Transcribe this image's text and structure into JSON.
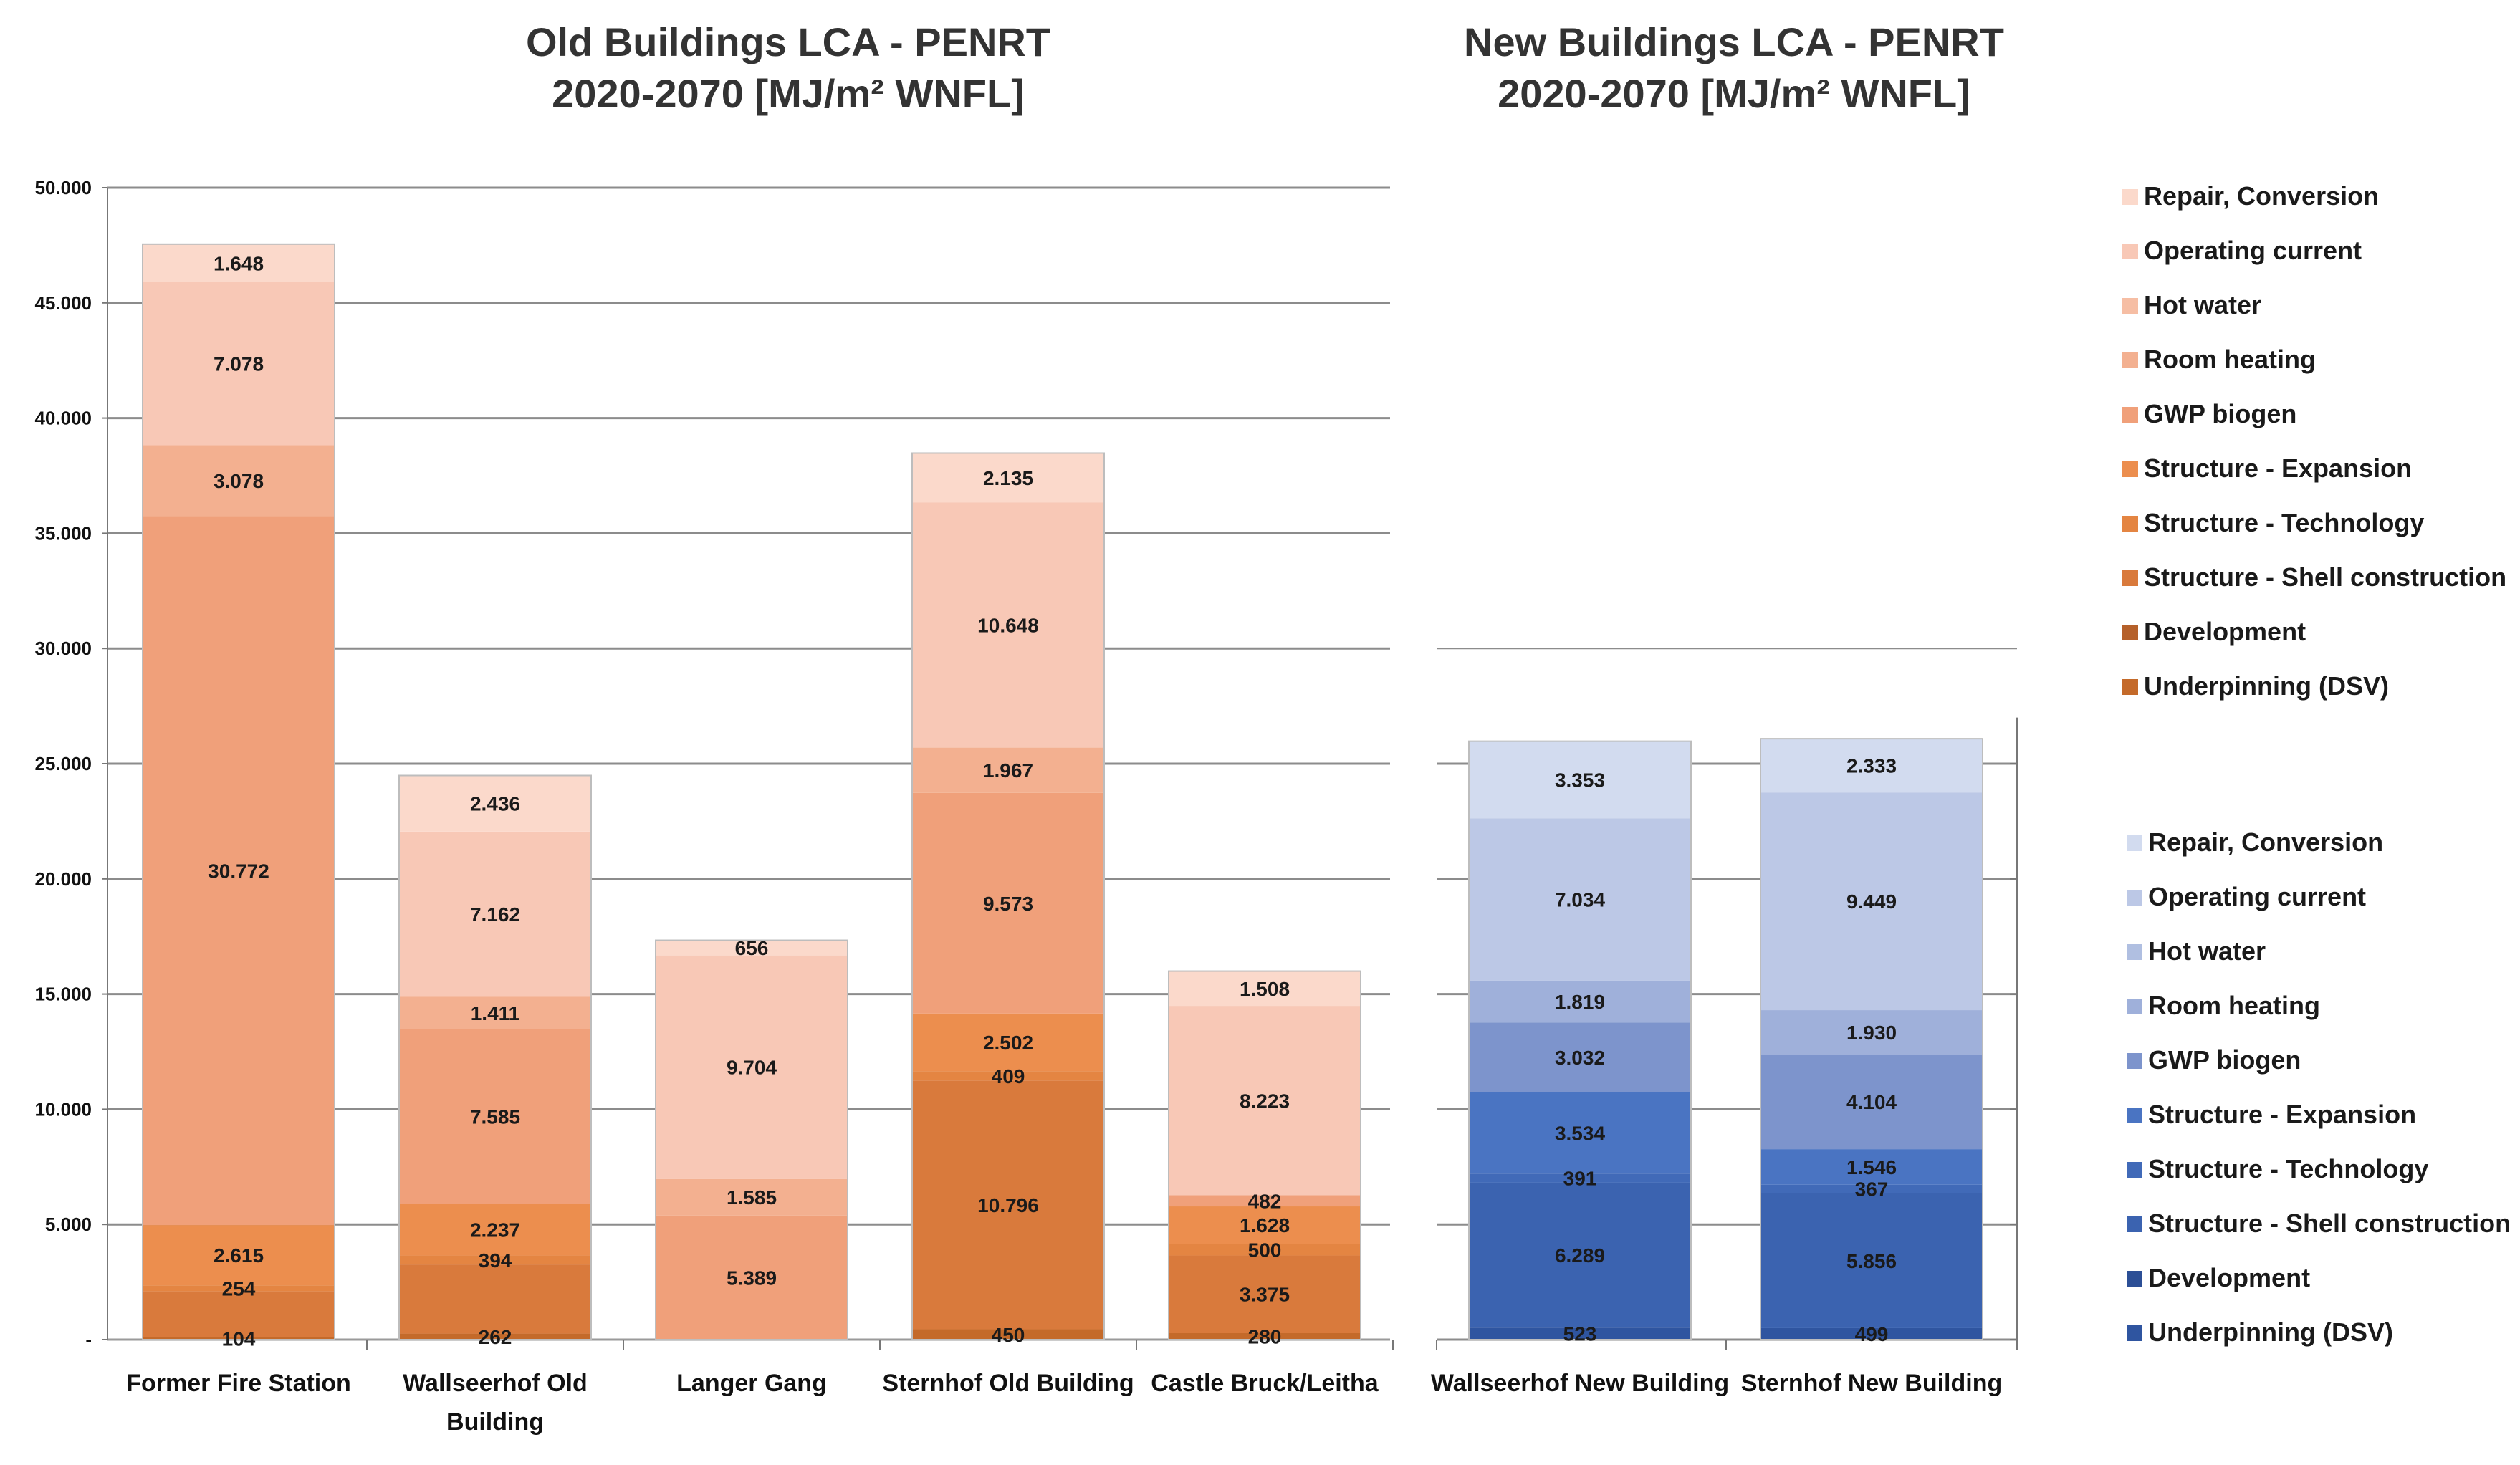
{
  "chart_data": [
    {
      "type": "bar",
      "stacked": true,
      "title": [
        "Old Buildings LCA - PENRT",
        "2020-2070 [MJ/m² WNFL]"
      ],
      "categories": [
        [
          "Former Fire Station"
        ],
        [
          "Wallseerhof Old",
          "Building"
        ],
        [
          "Langer Gang"
        ],
        [
          "Sternhof Old Building"
        ],
        [
          "Castle Bruck/Leitha"
        ]
      ],
      "ylim": [
        0,
        50000
      ],
      "yticks": [
        0,
        5000,
        10000,
        15000,
        20000,
        25000,
        30000,
        35000,
        40000,
        45000,
        50000
      ],
      "ytick_labels": [
        "-",
        "5.000",
        "10.000",
        "15.000",
        "20.000",
        "25.000",
        "30.000",
        "35.000",
        "40.000",
        "45.000",
        "50.000"
      ],
      "grid": true,
      "series": [
        {
          "name": "Underpinning (DSV)",
          "color": "#c46a2a",
          "values": [
            104,
            262,
            null,
            450,
            280
          ],
          "labels": [
            "104",
            "262",
            "",
            "450",
            "280"
          ]
        },
        {
          "name": "Development",
          "color": "#b5602a",
          "values": [
            null,
            null,
            null,
            null,
            null
          ],
          "labels": [
            "",
            "",
            "",
            "",
            ""
          ]
        },
        {
          "name": "Structure - Shell construction",
          "color": "#d97a3c",
          "values": [
            2000,
            3000,
            null,
            10796,
            3375
          ],
          "labels": [
            "",
            "",
            "",
            "10.796",
            "3.375"
          ]
        },
        {
          "name": "Structure - Technology",
          "color": "#e48542",
          "values": [
            254,
            394,
            null,
            409,
            500
          ],
          "labels": [
            "254",
            "394",
            "",
            "409",
            "500"
          ]
        },
        {
          "name": "Structure - Expansion",
          "color": "#ec8e4e",
          "values": [
            2615,
            2237,
            null,
            2502,
            1628
          ],
          "labels": [
            "2.615",
            "2.237",
            "",
            "2.502",
            "1.628"
          ]
        },
        {
          "name": "GWP biogen",
          "color": "#f0a07a",
          "values": [
            30772,
            7585,
            5389,
            9573,
            482
          ],
          "labels": [
            "30.772",
            "7.585",
            "5.389",
            "9.573",
            "482"
          ]
        },
        {
          "name": "Room heating",
          "color": "#f3b090",
          "values": [
            3078,
            1411,
            1585,
            1967,
            null
          ],
          "labels": [
            "3.078",
            "1.411",
            "1.585",
            "1.967",
            ""
          ]
        },
        {
          "name": "Hot water",
          "color": "#f6bea4",
          "values": [
            null,
            null,
            null,
            null,
            null
          ],
          "labels": [
            "",
            "",
            "",
            "",
            ""
          ]
        },
        {
          "name": "Operating current",
          "color": "#f8c8b6",
          "values": [
            7078,
            7162,
            9704,
            10648,
            8223
          ],
          "labels": [
            "7.078",
            "7.162",
            "9.704",
            "10.648",
            "8.223"
          ]
        },
        {
          "name": "Repair, Conversion",
          "color": "#fbd9cb",
          "values": [
            1648,
            2436,
            656,
            2135,
            1508
          ],
          "labels": [
            "1.648",
            "2.436",
            "656",
            "2.135",
            "1.508"
          ]
        }
      ]
    },
    {
      "type": "bar",
      "stacked": true,
      "title": [
        "New Buildings LCA - PENRT",
        "2020-2070 [MJ/m² WNFL]"
      ],
      "categories": [
        [
          "Wallseerhof New Building"
        ],
        [
          "Sternhof New Building"
        ]
      ],
      "ylim": [
        0,
        30000
      ],
      "grid": true,
      "series": [
        {
          "name": "Underpinning (DSV)",
          "color": "#2f55a0",
          "values": [
            523,
            499
          ],
          "labels": [
            "523",
            "499"
          ]
        },
        {
          "name": "Development",
          "color": "#2c4f96",
          "values": [
            null,
            null
          ],
          "labels": [
            "",
            ""
          ]
        },
        {
          "name": "Structure - Shell construction",
          "color": "#3b63b0",
          "values": [
            6289,
            5856
          ],
          "labels": [
            "6.289",
            "5.856"
          ]
        },
        {
          "name": "Structure - Technology",
          "color": "#416ab8",
          "values": [
            391,
            367
          ],
          "labels": [
            "391",
            "367"
          ]
        },
        {
          "name": "Structure - Expansion",
          "color": "#4a74c2",
          "values": [
            3534,
            1546
          ],
          "labels": [
            "3.534",
            "1.546"
          ]
        },
        {
          "name": "GWP biogen",
          "color": "#7d94cc",
          "values": [
            3032,
            4104
          ],
          "labels": [
            "3.032",
            "4.104"
          ]
        },
        {
          "name": "Room heating",
          "color": "#9fb0da",
          "values": [
            1819,
            1930
          ],
          "labels": [
            "1.819",
            "1.930"
          ]
        },
        {
          "name": "Hot water",
          "color": "#b0bfe1",
          "values": [
            null,
            null
          ],
          "labels": [
            "",
            ""
          ]
        },
        {
          "name": "Operating current",
          "color": "#bcc8e6",
          "values": [
            7034,
            9449
          ],
          "labels": [
            "7.034",
            "9.449"
          ]
        },
        {
          "name": "Repair, Conversion",
          "color": "#d2dbef",
          "values": [
            3353,
            2333
          ],
          "labels": [
            "3.353",
            "2.333"
          ]
        }
      ]
    }
  ],
  "legends": [
    {
      "entries": [
        {
          "label": "Repair, Conversion",
          "color": "#fbd9cb"
        },
        {
          "label": "Operating current",
          "color": "#f8c8b6"
        },
        {
          "label": "Hot water",
          "color": "#f6bea4"
        },
        {
          "label": "Room heating",
          "color": "#f3b090"
        },
        {
          "label": "GWP biogen",
          "color": "#f0a07a"
        },
        {
          "label": "Structure - Expansion",
          "color": "#ec8e4e"
        },
        {
          "label": "Structure - Technology",
          "color": "#e48542"
        },
        {
          "label": "Structure - Shell construction",
          "color": "#d97a3c"
        },
        {
          "label": "Development",
          "color": "#b5602a"
        },
        {
          "label": "Underpinning (DSV)",
          "color": "#c46a2a"
        }
      ]
    },
    {
      "entries": [
        {
          "label": "Repair, Conversion",
          "color": "#d2dbef"
        },
        {
          "label": "Operating current",
          "color": "#bcc8e6"
        },
        {
          "label": "Hot water",
          "color": "#b0bfe1"
        },
        {
          "label": "Room heating",
          "color": "#9fb0da"
        },
        {
          "label": "GWP biogen",
          "color": "#7d94cc"
        },
        {
          "label": "Structure - Expansion",
          "color": "#4a74c2"
        },
        {
          "label": "Structure - Technology",
          "color": "#416ab8"
        },
        {
          "label": "Structure - Shell construction",
          "color": "#3b63b0"
        },
        {
          "label": "Development",
          "color": "#2c4f96"
        },
        {
          "label": "Underpinning (DSV)",
          "color": "#2f55a0"
        }
      ]
    }
  ]
}
